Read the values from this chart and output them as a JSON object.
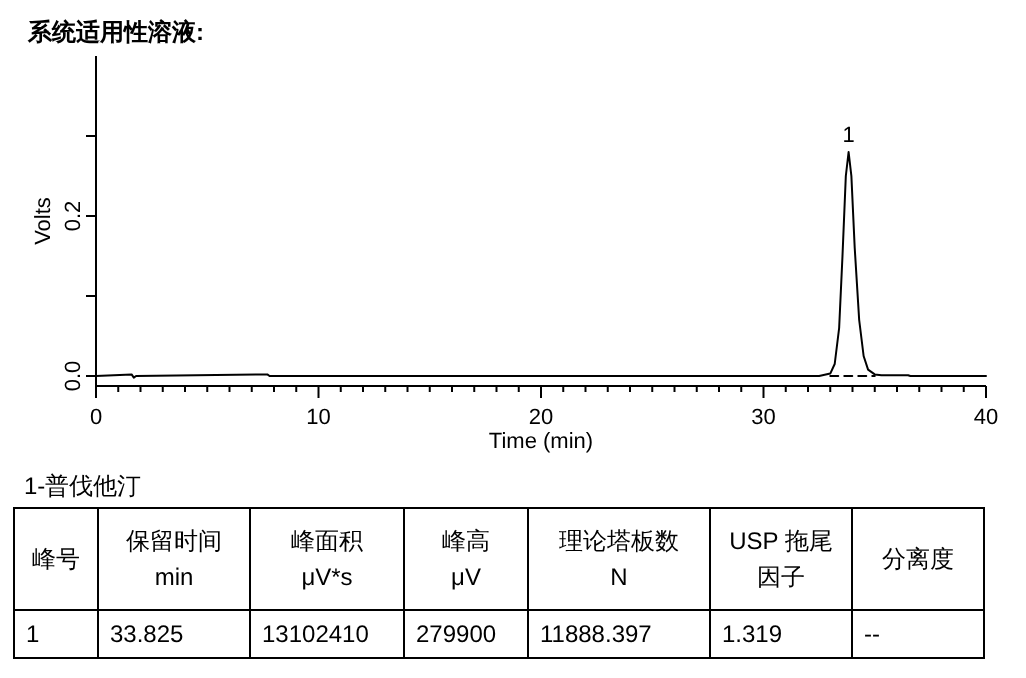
{
  "chart_data": {
    "type": "line",
    "title": "系统适用性溶液:",
    "xlabel": "Time (min)",
    "ylabel": "Volts",
    "xlim": [
      0,
      40
    ],
    "ylim": [
      -0.0125,
      0.4
    ],
    "xticks": [
      0,
      {
        "value": 1,
        "label": null
      },
      {
        "value": 2,
        "label": null
      },
      {
        "value": 3,
        "label": null
      },
      {
        "value": 4,
        "label": null
      },
      {
        "value": 5,
        "label": null
      },
      {
        "value": 6,
        "label": null
      },
      {
        "value": 7,
        "label": null
      },
      {
        "value": 8,
        "label": null
      },
      {
        "value": 9,
        "label": null
      },
      10,
      {
        "value": 11,
        "label": null
      },
      {
        "value": 12,
        "label": null
      },
      {
        "value": 13,
        "label": null
      },
      {
        "value": 14,
        "label": null
      },
      {
        "value": 15,
        "label": null
      },
      {
        "value": 16,
        "label": null
      },
      {
        "value": 17,
        "label": null
      },
      {
        "value": 18,
        "label": null
      },
      {
        "value": 19,
        "label": null
      },
      20,
      {
        "value": 21,
        "label": null
      },
      {
        "value": 22,
        "label": null
      },
      {
        "value": 23,
        "label": null
      },
      {
        "value": 24,
        "label": null
      },
      {
        "value": 25,
        "label": null
      },
      {
        "value": 26,
        "label": null
      },
      {
        "value": 27,
        "label": null
      },
      {
        "value": 28,
        "label": null
      },
      {
        "value": 29,
        "label": null
      },
      30,
      {
        "value": 31,
        "label": null
      },
      {
        "value": 32,
        "label": null
      },
      {
        "value": 33,
        "label": null
      },
      {
        "value": 34,
        "label": null
      },
      {
        "value": 35,
        "label": null
      },
      {
        "value": 36,
        "label": null
      },
      {
        "value": 37,
        "label": null
      },
      {
        "value": 38,
        "label": null
      },
      {
        "value": 39,
        "label": null
      },
      40
    ],
    "yticks": [
      {
        "value": 0,
        "label": "0.0"
      },
      {
        "value": 0.1,
        "label": null
      },
      0.2,
      {
        "value": 0.3,
        "label": null
      }
    ],
    "series": [
      {
        "color": "#000000",
        "line_style": "solid",
        "x": [
          0,
          1.6,
          1.7,
          1.8,
          7.7,
          7.8,
          32.5,
          33.0,
          33.2,
          33.4,
          33.55,
          33.7,
          33.825,
          33.95,
          34.1,
          34.3,
          34.5,
          34.7,
          35.0,
          35.3,
          36.5,
          36.6,
          40
        ],
        "values": [
          0,
          0.002,
          -0.002,
          0,
          0.002,
          0,
          0,
          0.003,
          0.015,
          0.06,
          0.15,
          0.25,
          0.28,
          0.25,
          0.16,
          0.07,
          0.025,
          0.008,
          0.002,
          0.001,
          0.001,
          0,
          0
        ]
      },
      {
        "color": "#000000",
        "line_style": "dashed",
        "x": [
          33.0,
          35.0
        ],
        "values": [
          0,
          0
        ]
      }
    ],
    "annotations": [
      {
        "text": "1",
        "x": 33.825,
        "y": 0.2799
      },
      "1-普伐他汀",
      "峰号",
      "保留时间\nmin",
      "峰面积\nμV*s",
      "峰高\nμV",
      "理论塔板数\nN",
      "USP 拖尾因子",
      "分离度",
      "1",
      "33.825",
      "13102410",
      "279900",
      "11888.397",
      "1.319",
      "--"
    ]
  }
}
